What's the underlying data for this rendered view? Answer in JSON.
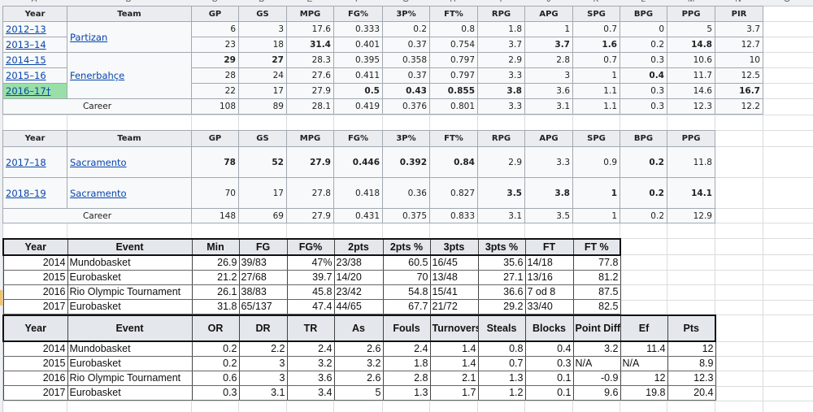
{
  "spreadsheet": {
    "column_letters": [
      "A",
      "B",
      "C",
      "D",
      "E",
      "F",
      "G",
      "H",
      "I",
      "J",
      "K",
      "L",
      "M",
      "N",
      "O"
    ],
    "selected_row_indicator": true
  },
  "euroleague_table": {
    "headers": [
      "Year",
      "Team",
      "GP",
      "GS",
      "MPG",
      "FG%",
      "3P%",
      "FT%",
      "RPG",
      "APG",
      "SPG",
      "BPG",
      "PPG",
      "PIR"
    ],
    "teams": [
      {
        "name": "Partizan",
        "rowspan": 2
      },
      {
        "name": "Fenerbahçe",
        "rowspan": 3
      }
    ],
    "rows": [
      {
        "year": "2012–13",
        "team_group": 0,
        "highlight": false,
        "values": [
          "6",
          "3",
          "17.6",
          "0.333",
          "0.2",
          "0.8",
          "1.8",
          "1",
          "0.7",
          "0",
          "5",
          "3.7"
        ],
        "bold": []
      },
      {
        "year": "2013–14",
        "team_group": 0,
        "highlight": false,
        "values": [
          "23",
          "18",
          "31.4",
          "0.401",
          "0.37",
          "0.754",
          "3.7",
          "3.7",
          "1.6",
          "0.2",
          "14.8",
          "12.7"
        ],
        "bold": [
          2,
          7,
          8,
          10
        ]
      },
      {
        "year": "2014–15",
        "team_group": 1,
        "highlight": false,
        "values": [
          "29",
          "27",
          "28.3",
          "0.395",
          "0.358",
          "0.797",
          "2.9",
          "2.8",
          "0.7",
          "0.3",
          "10.6",
          "10"
        ],
        "bold": [
          0,
          1
        ]
      },
      {
        "year": "2015–16",
        "team_group": 1,
        "highlight": false,
        "values": [
          "28",
          "24",
          "27.6",
          "0.411",
          "0.37",
          "0.797",
          "3.3",
          "3",
          "1",
          "0.4",
          "11.7",
          "12.5"
        ],
        "bold": [
          9
        ]
      },
      {
        "year": "2016–17†",
        "team_group": 1,
        "highlight": true,
        "values": [
          "22",
          "17",
          "27.9",
          "0.5",
          "0.43",
          "0.855",
          "3.8",
          "3.6",
          "1.1",
          "0.3",
          "14.6",
          "16.7"
        ],
        "bold": [
          3,
          4,
          5,
          6,
          11
        ]
      }
    ],
    "career": {
      "label": "Career",
      "values": [
        "108",
        "89",
        "28.1",
        "0.419",
        "0.376",
        "0.801",
        "3.3",
        "3.1",
        "1.1",
        "0.3",
        "12.3",
        "12.2"
      ]
    },
    "highlight_color": "#98e0a8"
  },
  "nba_table": {
    "headers": [
      "Year",
      "Team",
      "GP",
      "GS",
      "MPG",
      "FG%",
      "3P%",
      "FT%",
      "RPG",
      "APG",
      "SPG",
      "BPG",
      "PPG"
    ],
    "rows": [
      {
        "year": "2017–18",
        "team": "Sacramento",
        "values": [
          "78",
          "52",
          "27.9",
          "0.446",
          "0.392",
          "0.84",
          "2.9",
          "3.3",
          "0.9",
          "0.2",
          "11.8"
        ],
        "bold": [
          0,
          1,
          2,
          3,
          4,
          5,
          9
        ]
      },
      {
        "year": "2018–19",
        "team": "Sacramento",
        "values": [
          "70",
          "17",
          "27.8",
          "0.418",
          "0.36",
          "0.827",
          "3.5",
          "3.8",
          "1",
          "0.2",
          "14.1"
        ],
        "bold": [
          6,
          7,
          8,
          9,
          10
        ]
      }
    ],
    "career": {
      "label": "Career",
      "values": [
        "148",
        "69",
        "27.9",
        "0.431",
        "0.375",
        "0.833",
        "3.1",
        "3.5",
        "1",
        "0.2",
        "12.9"
      ]
    }
  },
  "shooting_table": {
    "headers": [
      "Year",
      "Event",
      "Min",
      "FG",
      "FG%",
      "2pts",
      "2pts %",
      "3pts",
      "3pts %",
      "FT",
      "FT %"
    ],
    "rows": [
      [
        "2014",
        "Mundobasket",
        "26.9",
        "39/83",
        "47%",
        "23/38",
        "60.5",
        "16/45",
        "35.6",
        "14/18",
        "77.8"
      ],
      [
        "2015",
        "Eurobasket",
        "21.2",
        "27/68",
        "39.7",
        "14/20",
        "70",
        "13/48",
        "27.1",
        "13/16",
        "81.2"
      ],
      [
        "2016",
        "Rio Olympic Tournament",
        "26.1",
        "38/83",
        "45.8",
        "23/42",
        "54.8",
        "15/41",
        "36.6",
        "7 od 8",
        "87.5"
      ],
      [
        "2017",
        "Eurobasket",
        "31.8",
        "65/137",
        "47.4",
        "44/65",
        "67.7",
        "21/72",
        "29.2",
        "33/40",
        "82.5"
      ]
    ],
    "left_aligned_cols": [
      1,
      3,
      5,
      7,
      9
    ]
  },
  "misc_table": {
    "headers": [
      "Year",
      "Event",
      "OR",
      "DR",
      "TR",
      "As",
      "Fouls",
      "Turnovers",
      "Steals",
      "Blocks",
      "Point Diff",
      "Ef",
      "Pts"
    ],
    "rows": [
      [
        "2014",
        "Mundobasket",
        "0.2",
        "2.2",
        "2.4",
        "2.6",
        "2.4",
        "1.4",
        "0.8",
        "0.4",
        "3.2",
        "11.4",
        "12"
      ],
      [
        "2015",
        "Eurobasket",
        "0.2",
        "3",
        "3.2",
        "3.2",
        "1.8",
        "1.4",
        "0.7",
        "0.3",
        "N/A",
        "N/A",
        "8.9"
      ],
      [
        "2016",
        "Rio Olympic Tournament",
        "0.6",
        "3",
        "3.6",
        "2.6",
        "2.8",
        "2.1",
        "1.3",
        "0.1",
        "-0.9",
        "12",
        "12.3"
      ],
      [
        "2017",
        "Eurobasket",
        "0.3",
        "3.1",
        "3.4",
        "5",
        "1.3",
        "1.7",
        "1.2",
        "0.1",
        "9.6",
        "19.8",
        "20.4"
      ]
    ]
  }
}
